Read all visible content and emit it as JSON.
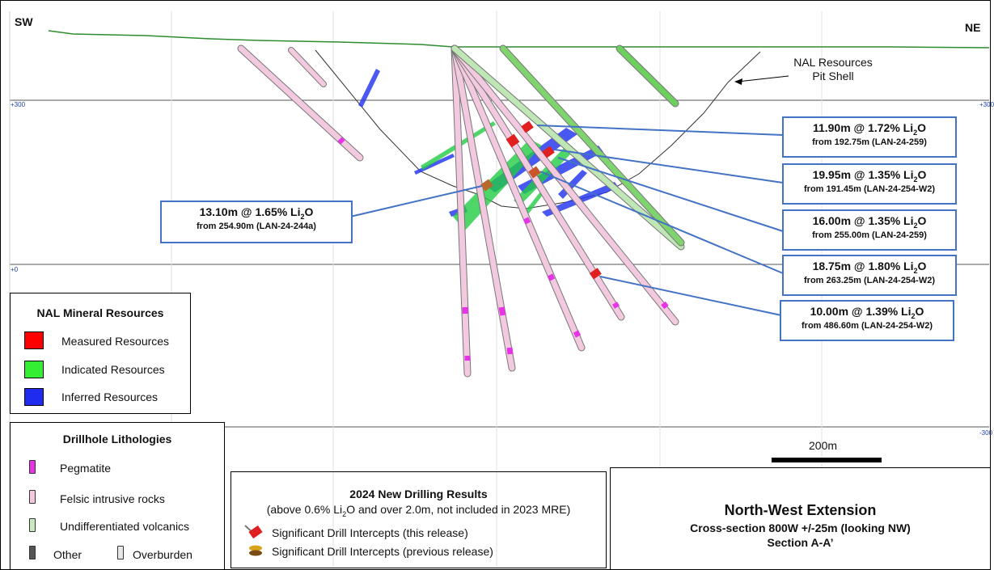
{
  "directions": {
    "left": "SW",
    "right": "NE"
  },
  "elevations": {
    "upper": "+300",
    "middle": "+0",
    "lower": "-300"
  },
  "pit_shell": {
    "line1": "NAL Resources",
    "line2": "Pit Shell"
  },
  "intercepts": [
    {
      "interval": "11.90m @ 1.72% Li",
      "sub": "2",
      "tail": "O",
      "detail": "from 192.75m  (LAN-24-259)"
    },
    {
      "interval": "19.95m @ 1.35% Li",
      "sub": "2",
      "tail": "O",
      "detail": "from 191.45m  (LAN-24-254-W2)"
    },
    {
      "interval": "16.00m @ 1.35% Li",
      "sub": "2",
      "tail": "O",
      "detail": "from 255.00m  (LAN-24-259)"
    },
    {
      "interval": "18.75m @ 1.80% Li",
      "sub": "2",
      "tail": "O",
      "detail": "from 263.25m  (LAN-24-254-W2)"
    },
    {
      "interval": "10.00m @ 1.39% Li",
      "sub": "2",
      "tail": "O",
      "detail": "from 486.60m  (LAN-24-254-W2)"
    },
    {
      "interval": "13.10m @ 1.65% Li",
      "sub": "2",
      "tail": "O",
      "detail": "from 254.90m  (LAN-24-244a)"
    }
  ],
  "resources_legend": {
    "title": "NAL Mineral Resources",
    "items": [
      {
        "label": "Measured Resources",
        "color": "#ff0000"
      },
      {
        "label": "Indicated Resources",
        "color": "#33ee33"
      },
      {
        "label": "Inferred Resources",
        "color": "#1f2cf0"
      }
    ]
  },
  "lithology_legend": {
    "title": "Drillhole Lithologies",
    "items": [
      {
        "label": "Pegmatite",
        "color": "#e633e6"
      },
      {
        "label": "Felsic intrusive rocks",
        "color": "#f5c8e0"
      },
      {
        "label": "Undifferentiated volcanics",
        "color": "#c8e8c0"
      },
      {
        "label": "Other",
        "color": "#555555"
      },
      {
        "label": "Overburden",
        "color": "#e8e8e8"
      }
    ]
  },
  "drilling_legend": {
    "title": "2024 New Drilling Results",
    "subtitle": "(above 0.6% Li",
    "subtitle_sub": "2",
    "subtitle_tail": "O and over 2.0m, not included in 2023 MRE)",
    "items": [
      {
        "label": "Significant Drill Intercepts (this release)",
        "icon": "red-intercept-icon"
      },
      {
        "label": "Significant Drill Intercepts (previous release)",
        "icon": "orange-intercept-icon"
      }
    ]
  },
  "scale_bar": {
    "label": "200m"
  },
  "title_block": {
    "title": "North-West Extension",
    "line2": "Cross-section 800W +/-25m (looking NW)",
    "line3": "Section A-A’"
  }
}
